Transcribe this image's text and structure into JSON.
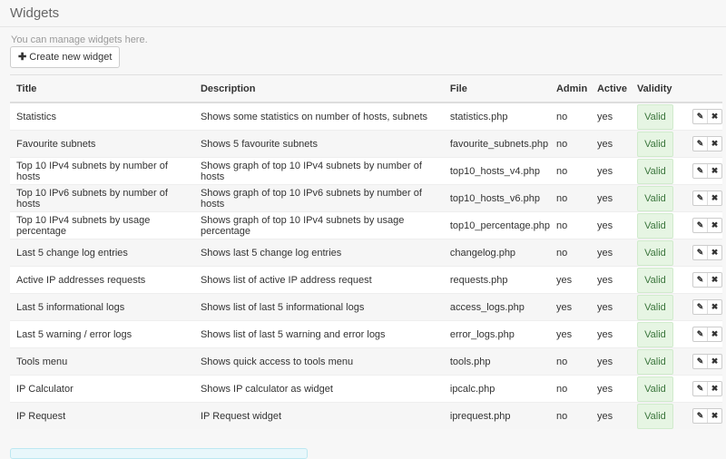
{
  "header": {
    "title": "Widgets",
    "subtitle": "You can manage widgets here.",
    "create_label": "Create new widget"
  },
  "table": {
    "columns": [
      "Title",
      "Description",
      "File",
      "Admin",
      "Active",
      "Validity"
    ],
    "rows": [
      {
        "title": "Statistics",
        "description": "Shows some statistics on number of hosts, subnets",
        "file": "statistics.php",
        "admin": "no",
        "active": "yes",
        "validity": "Valid"
      },
      {
        "title": "Favourite subnets",
        "description": "Shows 5 favourite subnets",
        "file": "favourite_subnets.php",
        "admin": "no",
        "active": "yes",
        "validity": "Valid"
      },
      {
        "title": "Top 10 IPv4 subnets by number of hosts",
        "description": "Shows graph of top 10 IPv4 subnets by number of hosts",
        "file": "top10_hosts_v4.php",
        "admin": "no",
        "active": "yes",
        "validity": "Valid"
      },
      {
        "title": "Top 10 IPv6 subnets by number of hosts",
        "description": "Shows graph of top 10 IPv6 subnets by number of hosts",
        "file": "top10_hosts_v6.php",
        "admin": "no",
        "active": "yes",
        "validity": "Valid"
      },
      {
        "title": "Top 10 IPv4 subnets by usage percentage",
        "description": "Shows graph of top 10 IPv4 subnets by usage percentage",
        "file": "top10_percentage.php",
        "admin": "no",
        "active": "yes",
        "validity": "Valid"
      },
      {
        "title": "Last 5 change log entries",
        "description": "Shows last 5 change log entries",
        "file": "changelog.php",
        "admin": "no",
        "active": "yes",
        "validity": "Valid"
      },
      {
        "title": "Active IP addresses requests",
        "description": "Shows list of active IP address request",
        "file": "requests.php",
        "admin": "yes",
        "active": "yes",
        "validity": "Valid"
      },
      {
        "title": "Last 5 informational logs",
        "description": "Shows list of last 5 informational logs",
        "file": "access_logs.php",
        "admin": "yes",
        "active": "yes",
        "validity": "Valid"
      },
      {
        "title": "Last 5 warning / error logs",
        "description": "Shows list of last 5 warning and error logs",
        "file": "error_logs.php",
        "admin": "yes",
        "active": "yes",
        "validity": "Valid"
      },
      {
        "title": "Tools menu",
        "description": "Shows quick access to tools menu",
        "file": "tools.php",
        "admin": "no",
        "active": "yes",
        "validity": "Valid"
      },
      {
        "title": "IP Calculator",
        "description": "Shows IP calculator as widget",
        "file": "ipcalc.php",
        "admin": "no",
        "active": "yes",
        "validity": "Valid"
      },
      {
        "title": "IP Request",
        "description": "IP Request widget",
        "file": "iprequest.php",
        "admin": "no",
        "active": "yes",
        "validity": "Valid"
      }
    ]
  },
  "colors": {
    "valid_bg": "#e6f5e3",
    "valid_text": "#3c763d"
  },
  "icons": {
    "create": "plus-icon",
    "edit": "pencil-icon",
    "delete": "times-icon"
  }
}
